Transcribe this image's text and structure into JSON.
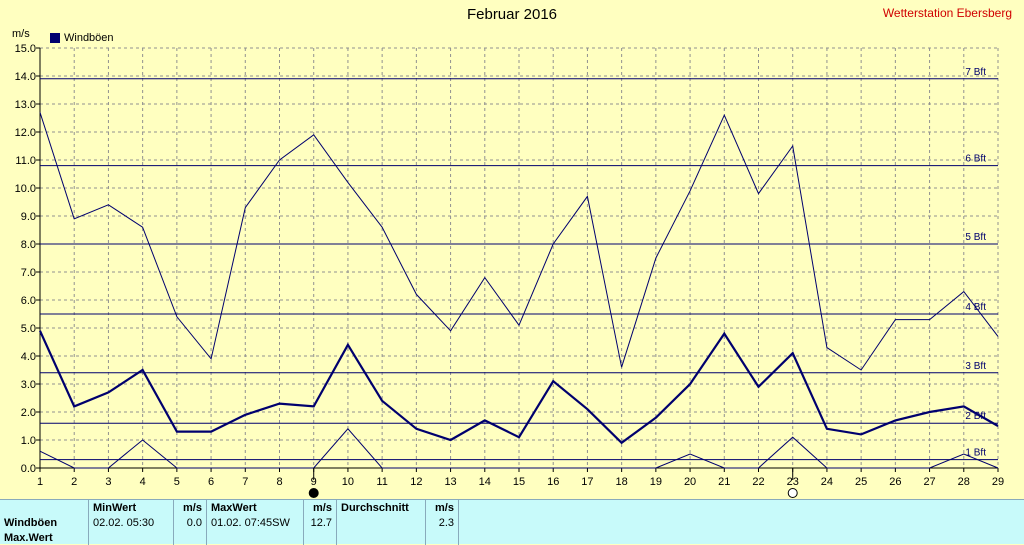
{
  "title": "Februar 2016",
  "station": "Wetterstation Ebersberg",
  "unit": "m/s",
  "legend_label": "Windböen",
  "colors": {
    "background": "#ffffc0",
    "series": "#00006e",
    "grid": "#909090",
    "station": "#d00000",
    "stats_bg": "#c8fafa"
  },
  "moon_icons": [
    {
      "day": 9,
      "icon": "new-moon-icon"
    },
    {
      "day": 23,
      "icon": "full-moon-icon"
    }
  ],
  "stats": {
    "headers": {
      "min": "MinWert",
      "min_unit": "m/s",
      "max": "MaxWert",
      "max_unit": "m/s",
      "avg": "Durchschnitt",
      "avg_unit": "m/s"
    },
    "rows": [
      {
        "label": "Windböen",
        "min_time": "02.02.  05:30",
        "min_val": "0.0",
        "max_time": "01.02.  07:45",
        "max_dir": "SW",
        "max_val": "12.7",
        "avg_val": "2.3"
      },
      {
        "label": "Max.Wert",
        "min_time": "",
        "min_val": "",
        "max_time": "",
        "max_dir": "",
        "max_val": "",
        "avg_val": ""
      }
    ]
  },
  "chart_data": {
    "type": "line",
    "xlim": [
      1,
      29
    ],
    "ylim": [
      0,
      15
    ],
    "x_ticks": [
      1,
      2,
      3,
      4,
      5,
      6,
      7,
      8,
      9,
      10,
      11,
      12,
      13,
      14,
      15,
      16,
      17,
      18,
      19,
      20,
      21,
      22,
      23,
      24,
      25,
      26,
      27,
      28,
      29
    ],
    "y_ticks": [
      "0.0",
      "1.0",
      "2.0",
      "3.0",
      "4.0",
      "5.0",
      "6.0",
      "7.0",
      "8.0",
      "9.0",
      "10.0",
      "11.0",
      "12.0",
      "13.0",
      "14.0",
      "15.0"
    ],
    "grid": true,
    "legend_position": "top-left",
    "beaufort": [
      {
        "label": "1 Bft",
        "value": 0.3
      },
      {
        "label": "2 Bft",
        "value": 1.6
      },
      {
        "label": "3 Bft",
        "value": 3.4
      },
      {
        "label": "4 Bft",
        "value": 5.5
      },
      {
        "label": "5 Bft",
        "value": 8.0
      },
      {
        "label": "6 Bft",
        "value": 10.8
      },
      {
        "label": "7 Bft",
        "value": 13.9
      }
    ],
    "series": [
      {
        "role": "max",
        "width": 1,
        "x": [
          1,
          2,
          3,
          4,
          5,
          6,
          7,
          8,
          9,
          10,
          11,
          12,
          13,
          14,
          15,
          16,
          17,
          18,
          19,
          20,
          21,
          22,
          23,
          24,
          25,
          26,
          27,
          28,
          29
        ],
        "values": [
          12.7,
          8.9,
          9.4,
          8.6,
          5.4,
          3.9,
          9.3,
          11.0,
          11.9,
          10.2,
          8.6,
          6.2,
          4.9,
          6.8,
          5.1,
          8.0,
          9.7,
          3.6,
          7.5,
          9.9,
          12.6,
          9.8,
          11.5,
          4.3,
          3.5,
          5.3,
          5.3,
          6.3,
          4.7
        ]
      },
      {
        "role": "average",
        "width": 2.2,
        "x": [
          1,
          2,
          3,
          4,
          5,
          6,
          7,
          8,
          9,
          10,
          11,
          12,
          13,
          14,
          15,
          16,
          17,
          18,
          19,
          20,
          21,
          22,
          23,
          24,
          25,
          26,
          27,
          28,
          29
        ],
        "values": [
          4.9,
          2.2,
          2.7,
          3.5,
          1.3,
          1.3,
          1.9,
          2.3,
          2.2,
          4.4,
          2.4,
          1.4,
          1.0,
          1.7,
          1.1,
          3.1,
          2.1,
          0.9,
          1.8,
          3.0,
          4.8,
          2.9,
          4.1,
          1.4,
          1.2,
          1.7,
          2.0,
          2.2,
          1.5
        ]
      },
      {
        "role": "min",
        "width": 1,
        "x": [
          1,
          2,
          3,
          4,
          5,
          6,
          7,
          8,
          9,
          10,
          11,
          12,
          13,
          14,
          15,
          16,
          17,
          18,
          19,
          20,
          21,
          22,
          23,
          24,
          25,
          26,
          27,
          28,
          29
        ],
        "values": [
          0.6,
          0.0,
          0.0,
          1.0,
          0.0,
          0.0,
          0.0,
          0.0,
          0.0,
          1.4,
          0.0,
          0.0,
          0.0,
          0.0,
          0.0,
          0.0,
          0.0,
          0.0,
          0.0,
          0.5,
          0.0,
          0.0,
          1.1,
          0.0,
          0.0,
          0.0,
          0.0,
          0.5,
          0.0
        ]
      }
    ]
  }
}
